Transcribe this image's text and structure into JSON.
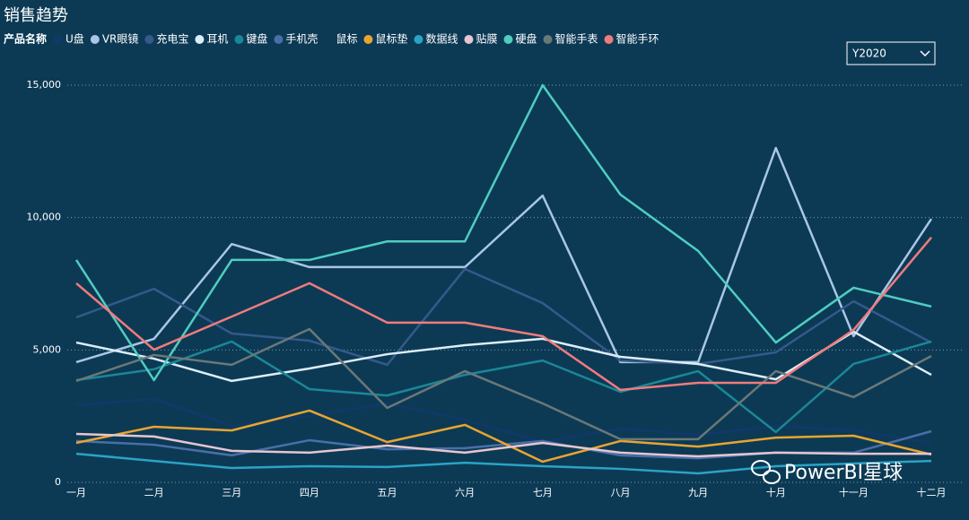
{
  "chart_data": {
    "type": "line",
    "title": "销售趋势",
    "legend_title": "产品名称",
    "filter": "Y2020",
    "watermark": "PowerBI星球",
    "categories": [
      "一月",
      "二月",
      "三月",
      "四月",
      "五月",
      "六月",
      "七月",
      "八月",
      "九月",
      "十月",
      "十一月",
      "十二月"
    ],
    "ylim": [
      0,
      15000
    ],
    "yticks": [
      {
        "value": 0,
        "label": "0"
      },
      {
        "value": 5000,
        "label": "5,000"
      },
      {
        "value": 10000,
        "label": "10,000"
      },
      {
        "value": 15000,
        "label": "15,000"
      }
    ],
    "grid": true,
    "series": [
      {
        "name": "U盘",
        "color": "#12386a",
        "values": [
          2910,
          3150,
          2130,
          2510,
          2980,
          2370,
          1520,
          2030,
          1790,
          2130,
          1960,
          1490
        ]
      },
      {
        "name": "VR眼镜",
        "color": "#a9c6e6",
        "values": [
          4540,
          5420,
          9000,
          8130,
          8130,
          8130,
          10830,
          4540,
          4540,
          12630,
          5520,
          9950
        ]
      },
      {
        "name": "充电宝",
        "color": "#35598a",
        "values": [
          6230,
          7310,
          5620,
          5350,
          4440,
          8060,
          6770,
          4600,
          4470,
          4910,
          6840,
          5280
        ]
      },
      {
        "name": "耳机",
        "color": "#dcedf7",
        "values": [
          5280,
          4670,
          3830,
          4300,
          4840,
          5180,
          5420,
          4740,
          4470,
          3890,
          5690,
          4060
        ]
      },
      {
        "name": "键盘",
        "color": "#1b8796",
        "values": [
          3860,
          4270,
          5320,
          3520,
          3280,
          4060,
          4600,
          3420,
          4200,
          1900,
          4470,
          5320
        ]
      },
      {
        "name": "手机壳",
        "color": "#4a6fa8",
        "values": [
          1560,
          1420,
          1020,
          1590,
          1250,
          1290,
          1560,
          1020,
          910,
          1120,
          1120,
          1930
        ]
      },
      {
        "name": "鼠标",
        "color": "#0c3a55",
        "values": [
          null,
          null,
          null,
          null,
          null,
          null,
          null,
          null,
          null,
          null,
          null,
          null
        ]
      },
      {
        "name": "鼠标垫",
        "color": "#e8a530",
        "values": [
          1490,
          2100,
          1960,
          2710,
          1520,
          2170,
          780,
          1560,
          1350,
          1690,
          1760,
          1050
        ]
      },
      {
        "name": "数据线",
        "color": "#2ba3c6",
        "values": [
          1080,
          810,
          540,
          610,
          580,
          740,
          610,
          510,
          340,
          610,
          710,
          810
        ]
      },
      {
        "name": "贴膜",
        "color": "#e6c6cf",
        "values": [
          1830,
          1730,
          1190,
          1120,
          1390,
          1120,
          1490,
          1120,
          980,
          1120,
          1080,
          1080
        ]
      },
      {
        "name": "硬盘",
        "color": "#4fcdc0",
        "values": [
          8400,
          3860,
          8400,
          8400,
          9100,
          9100,
          15000,
          10870,
          8740,
          5280,
          7350,
          6640
        ]
      },
      {
        "name": "智能手表",
        "color": "#6b7878",
        "values": [
          3830,
          4810,
          4440,
          5790,
          2810,
          4200,
          2980,
          1630,
          1630,
          4200,
          3220,
          4770
        ]
      },
      {
        "name": "智能手环",
        "color": "#f07b7d",
        "values": [
          7520,
          5010,
          6260,
          7520,
          6030,
          6030,
          5520,
          3490,
          3760,
          3760,
          5760,
          9250
        ]
      }
    ]
  }
}
